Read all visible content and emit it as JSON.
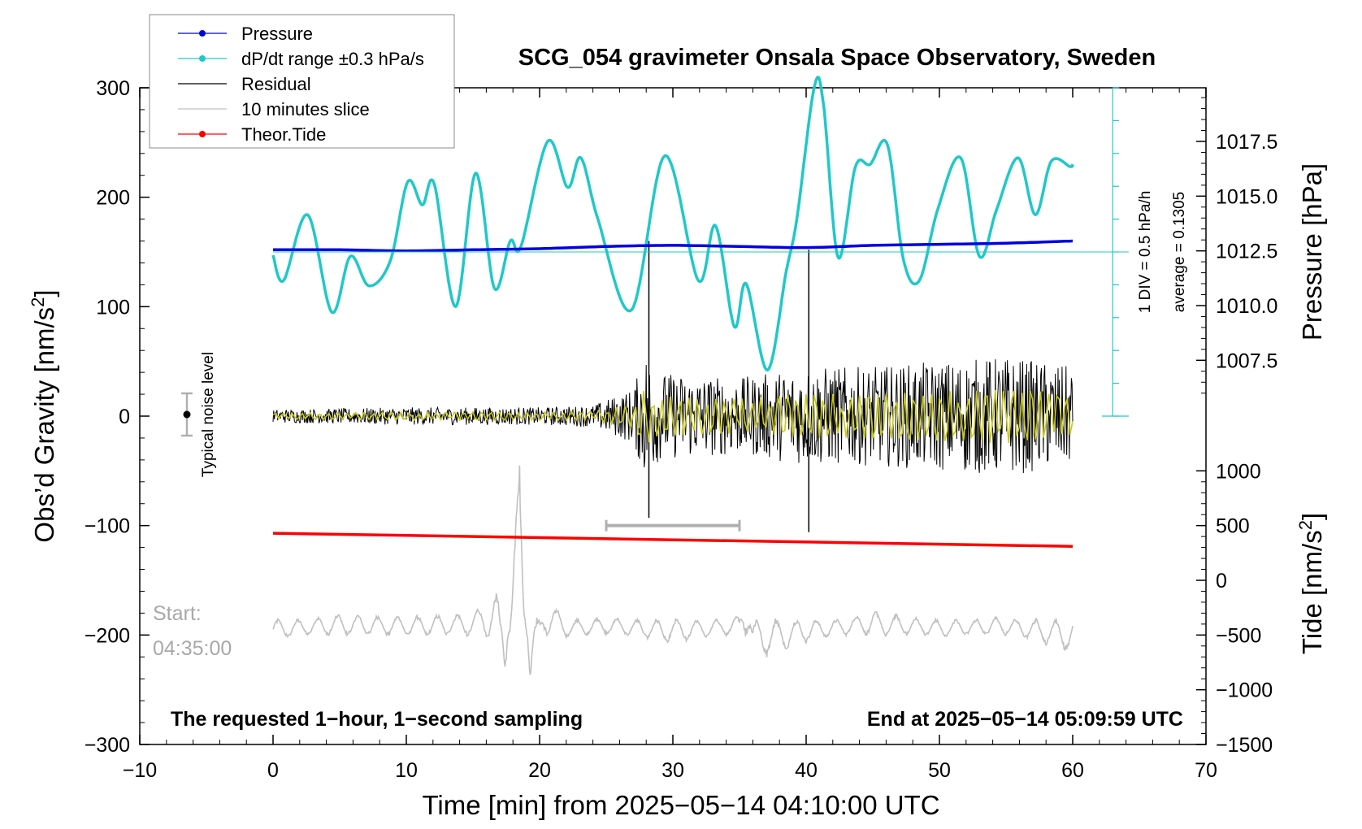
{
  "chart_data": {
    "type": "line",
    "title": "SCG_054 gravimeter Onsala Space Observatory, Sweden",
    "xlabel": "Time [min] from 2025−05−14 04:10:00 UTC",
    "ylabel_left": "Obs’d Gravity [nm/s",
    "ylabel_left_sup": "2",
    "ylabel_left_end": "]",
    "ylabel_right_top": "Pressure [hPa]",
    "ylabel_right_bottom": "Tide [nm/s",
    "ylabel_right_bottom_sup": "2",
    "ylabel_right_bottom_end": "]",
    "xlim": [
      -10,
      70
    ],
    "ylim_left": [
      -300,
      300
    ],
    "x_ticks": [
      "−10",
      "0",
      "10",
      "20",
      "30",
      "40",
      "50",
      "60",
      "70"
    ],
    "y_left_ticks": [
      "−300",
      "−200",
      "−100",
      "0",
      "100",
      "200",
      "300"
    ],
    "pressure_ticks": [
      "1007.5",
      "1010.0",
      "1012.5",
      "1015.0",
      "1017.5"
    ],
    "tide_ticks": [
      "−1500",
      "−1000",
      "−500",
      "0",
      "500",
      "1000"
    ],
    "grid": false,
    "legend_position": "top-left",
    "legend": [
      {
        "label": "Pressure",
        "color": "#0000e6",
        "marker": true
      },
      {
        "label": "dP/dt range ±0.3 hPa/s",
        "color": "#20c8c8",
        "marker": true
      },
      {
        "label": "Residual",
        "color": "#000000",
        "marker": false
      },
      {
        "label": "10 minutes slice",
        "color": "#c0c0c0",
        "marker": false
      },
      {
        "label": "Theor.Tide",
        "color": "#ff0000",
        "marker": true
      }
    ],
    "annotations": {
      "noise_label": "Typical noise level",
      "div_label": "1 DIV = 0.5 hPa/h",
      "avg_label": "average = 0.1305",
      "start_label": "Start:",
      "start_time": "04:35:00",
      "bottom_left": "The requested 1−hour, 1−second sampling",
      "bottom_right": "End at 2025−05−14 05:09:59 UTC"
    },
    "slice_window": [
      25,
      35
    ],
    "series": [
      {
        "name": "Pressure",
        "color": "#0000e6",
        "x": [
          0,
          5,
          10,
          15,
          20,
          25,
          30,
          35,
          40,
          45,
          50,
          55,
          60
        ],
        "y": [
          152,
          152,
          151,
          152,
          153,
          155,
          156,
          155,
          154,
          156,
          157,
          158,
          160
        ]
      },
      {
        "name": "dP/dt range ±0.3 hPa/s",
        "color": "#20c8c8",
        "x": [
          0,
          0.8,
          2.6,
          4.4,
          5.8,
          7.2,
          8.8,
          10.1,
          11.2,
          12.1,
          13.7,
          15.2,
          16.6,
          17.8,
          18.6,
          20.6,
          22.1,
          23.1,
          24.4,
          26.9,
          29.4,
          31.9,
          33.2,
          34.6,
          35.5,
          37.1,
          38.5,
          39.3,
          40.6,
          41.3,
          42.4,
          43.7,
          44.8,
          46.1,
          47.3,
          48.5,
          49.9,
          51.6,
          53.0,
          54.3,
          55.9,
          57.2,
          58.4,
          59.8,
          60.0
        ],
        "y": [
          147,
          124,
          184,
          95,
          146,
          119,
          142,
          214,
          193,
          212,
          100,
          222,
          117,
          160,
          155,
          251,
          209,
          236,
          179,
          97,
          238,
          124,
          174,
          82,
          121,
          42,
          132,
          180,
          300,
          285,
          145,
          228,
          230,
          248,
          143,
          124,
          190,
          236,
          146,
          189,
          236,
          184,
          233,
          228,
          230
        ]
      },
      {
        "name": "Residual",
        "color": "#000000",
        "envelope": {
          "x": [
            0,
            10,
            20,
            24,
            27,
            28,
            29,
            35,
            40,
            45,
            50,
            55,
            60
          ],
          "amp": [
            6,
            8,
            8,
            10,
            25,
            60,
            40,
            35,
            45,
            45,
            50,
            55,
            45
          ]
        },
        "spikes": [
          {
            "x": 28.2,
            "y_max": 160,
            "y_min": -93
          },
          {
            "x": 40.2,
            "y_max": 152,
            "y_min": -106
          }
        ]
      },
      {
        "name": "10 minutes slice",
        "color": "#c0c0c0",
        "x": [
          0,
          5,
          10,
          15,
          16.8,
          17.4,
          17.9,
          18.5,
          19.3,
          20.4,
          22.0,
          25.0,
          30.0,
          35.0,
          35.6,
          36.0,
          40.0,
          45.0,
          50.0,
          55.0,
          60.0
        ],
        "y": [
          -197,
          -188,
          -190,
          -187,
          -165,
          -235,
          -148,
          -22,
          -253,
          -167,
          -195,
          -190,
          -200,
          -190,
          -142,
          -218,
          -200,
          -185,
          -195,
          -190,
          -210
        ]
      },
      {
        "name": "Theor.Tide",
        "color": "#ff0000",
        "x": [
          0,
          60
        ],
        "y": [
          -107,
          -119
        ]
      }
    ]
  }
}
